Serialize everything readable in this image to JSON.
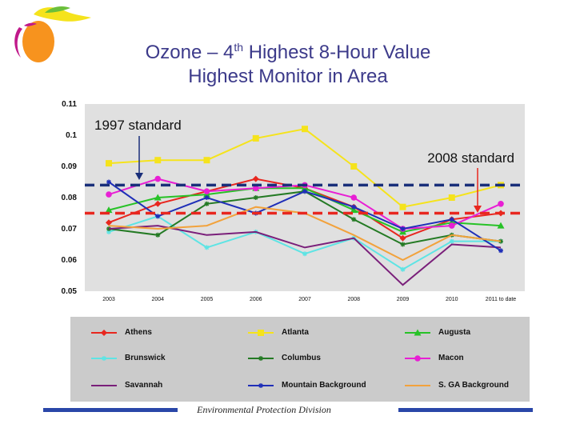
{
  "header": {
    "title_line1_pre": "Ozone – 4",
    "title_line1_sup": "th",
    "title_line1_post": " Highest 8-Hour Value",
    "title_line2": "Highest Monitor in Area"
  },
  "footer": {
    "text": "Environmental Protection Division"
  },
  "colors": {
    "title": "#3c3a8a",
    "plot_bg": "#e0e0e0",
    "legend_bg": "#cbcbcb",
    "footer_bar": "#2a47a8"
  },
  "chart_data": {
    "type": "line",
    "categories": [
      "2003",
      "2004",
      "2005",
      "2006",
      "2007",
      "2008",
      "2009",
      "2010",
      "2011 to date"
    ],
    "ylim": [
      0.05,
      0.11
    ],
    "yticks": [
      "0.05",
      "0.06",
      "0.07",
      "0.08",
      "0.09",
      "0.1",
      "0.11"
    ],
    "grid": false,
    "legend_position": "bottom",
    "series": [
      {
        "name": "Athens",
        "color": "#e8271f",
        "marker": "diamond",
        "values": [
          0.072,
          0.078,
          0.082,
          0.086,
          0.083,
          0.077,
          0.067,
          0.073,
          0.075
        ]
      },
      {
        "name": "Atlanta",
        "color": "#f5e31c",
        "marker": "square",
        "values": [
          0.091,
          0.092,
          0.092,
          0.099,
          0.102,
          0.09,
          0.077,
          0.08,
          0.084
        ]
      },
      {
        "name": "Augusta",
        "color": "#27c227",
        "marker": "triangle",
        "values": [
          0.076,
          0.08,
          0.081,
          0.083,
          0.083,
          0.076,
          0.069,
          0.072,
          0.071
        ]
      },
      {
        "name": "Brunswick",
        "color": "#5ee4e4",
        "marker": "star",
        "values": [
          0.069,
          0.074,
          0.064,
          0.069,
          0.062,
          0.067,
          0.057,
          0.066,
          0.066
        ]
      },
      {
        "name": "Columbus",
        "color": "#247a24",
        "marker": "star",
        "values": [
          0.07,
          0.068,
          0.078,
          0.08,
          0.082,
          0.073,
          0.065,
          0.068,
          0.066
        ]
      },
      {
        "name": "Macon",
        "color": "#e81fd4",
        "marker": "circle",
        "values": [
          0.081,
          0.086,
          0.082,
          0.083,
          0.084,
          0.08,
          0.07,
          0.071,
          0.078
        ]
      },
      {
        "name": "Savannah",
        "color": "#7a1f7a",
        "marker": "none",
        "values": [
          0.07,
          0.071,
          0.068,
          0.069,
          0.064,
          0.067,
          0.052,
          0.065,
          0.064
        ]
      },
      {
        "name": "Mountain Background",
        "color": "#1f2fb8",
        "marker": "star",
        "values": [
          0.085,
          0.074,
          0.08,
          0.075,
          0.082,
          0.077,
          0.07,
          0.073,
          0.063
        ]
      },
      {
        "name": "S. GA Background",
        "color": "#f2a23c",
        "marker": "none",
        "values": [
          0.071,
          0.07,
          0.071,
          0.077,
          0.075,
          0.068,
          0.06,
          0.068,
          0.066
        ]
      }
    ],
    "reference_lines": [
      {
        "label": "1997 standard",
        "value": 0.084,
        "color": "#1a2f7a"
      },
      {
        "label": "2008 standard",
        "value": 0.075,
        "color": "#e8271f"
      }
    ]
  }
}
